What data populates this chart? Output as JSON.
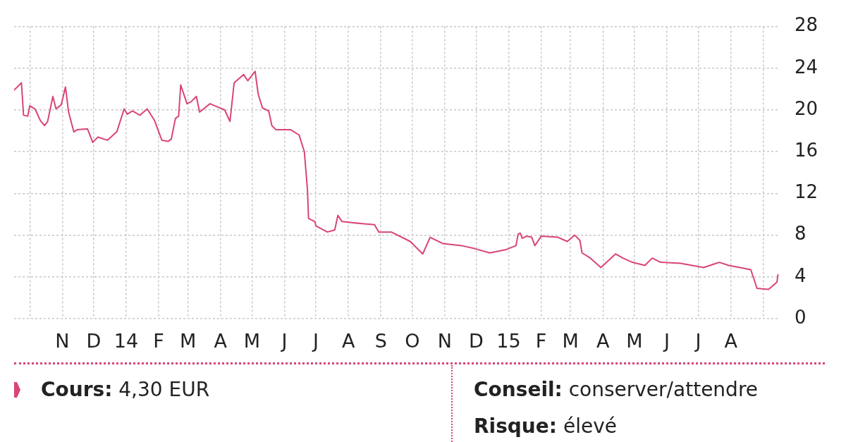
{
  "chart_data": {
    "type": "line",
    "x": [
      "2013-09-16",
      "2013-09-23",
      "2013-09-25",
      "2013-09-29",
      "2013-10-01",
      "2013-10-06",
      "2013-10-11",
      "2013-10-15",
      "2013-10-18",
      "2013-10-23",
      "2013-10-26",
      "2013-10-31",
      "2013-11-04",
      "2013-11-07",
      "2013-11-12",
      "2013-11-15",
      "2013-11-25",
      "2013-11-30",
      "2013-12-05",
      "2013-12-14",
      "2013-12-23",
      "2013-12-30",
      "2014-01-02",
      "2014-01-07",
      "2014-01-14",
      "2014-01-21",
      "2014-01-28",
      "2014-02-04",
      "2014-02-10",
      "2014-02-13",
      "2014-02-17",
      "2014-02-20",
      "2014-02-22",
      "2014-02-28",
      "2014-03-04",
      "2014-03-09",
      "2014-03-12",
      "2014-03-22",
      "2014-03-29",
      "2014-04-05",
      "2014-04-10",
      "2014-04-14",
      "2014-04-23",
      "2014-04-27",
      "2014-05-04",
      "2014-05-07",
      "2014-05-11",
      "2014-05-17",
      "2014-05-20",
      "2014-05-24",
      "2014-06-07",
      "2014-06-15",
      "2014-06-20",
      "2014-06-23",
      "2014-06-24",
      "2014-06-30",
      "2014-07-01",
      "2014-07-12",
      "2014-07-19",
      "2014-07-22",
      "2014-07-26",
      "2014-08-04",
      "2014-08-26",
      "2014-08-30",
      "2014-09-11",
      "2014-09-29",
      "2014-10-11",
      "2014-10-18",
      "2014-10-30",
      "2014-11-17",
      "2014-11-30",
      "2014-12-14",
      "2014-12-29",
      "2015-01-08",
      "2015-01-10",
      "2015-01-12",
      "2015-01-14",
      "2015-01-18",
      "2015-01-23",
      "2015-01-26",
      "2015-02-01",
      "2015-02-17",
      "2015-02-19",
      "2015-02-26",
      "2015-03-05",
      "2015-03-10",
      "2015-03-12",
      "2015-03-20",
      "2015-03-30",
      "2015-04-13",
      "2015-04-20",
      "2015-04-29",
      "2015-05-11",
      "2015-05-18",
      "2015-05-26",
      "2015-06-14",
      "2015-07-06",
      "2015-07-21",
      "2015-07-30",
      "2015-08-20",
      "2015-08-23",
      "2015-08-26",
      "2015-09-06",
      "2015-09-14",
      "2015-09-15"
    ],
    "series": [
      {
        "color": "#d9447a",
        "values": [
          21.9,
          22.6,
          19.5,
          19.4,
          20.4,
          20.1,
          19.0,
          18.5,
          18.9,
          21.3,
          20.1,
          20.5,
          22.2,
          19.8,
          17.9,
          18.1,
          18.2,
          16.9,
          17.4,
          17.1,
          17.9,
          20.1,
          19.6,
          19.9,
          19.5,
          20.1,
          19.0,
          17.1,
          17.0,
          17.2,
          19.2,
          19.4,
          22.4,
          20.6,
          20.8,
          21.3,
          19.8,
          20.6,
          20.3,
          20.0,
          18.9,
          22.6,
          23.4,
          22.8,
          23.7,
          21.5,
          20.2,
          19.9,
          18.5,
          18.1,
          18.1,
          17.6,
          16.0,
          12.3,
          9.6,
          9.3,
          8.9,
          8.3,
          8.5,
          9.9,
          9.3,
          9.2,
          9.0,
          8.3,
          8.3,
          7.4,
          6.2,
          7.8,
          7.2,
          7.0,
          6.7,
          6.3,
          6.6,
          7.0,
          8.1,
          8.2,
          7.7,
          7.9,
          7.8,
          7.0,
          7.9,
          7.8,
          7.7,
          7.4,
          8.0,
          7.5,
          6.3,
          5.8,
          4.9,
          6.2,
          5.8,
          5.4,
          5.1,
          5.8,
          5.4,
          5.3,
          4.9,
          5.4,
          5.1,
          4.7,
          3.8,
          2.9,
          2.8,
          3.5,
          4.2
        ]
      }
    ],
    "xlim": [
      "2013-09-16",
      "2015-09-16"
    ],
    "xticks": [
      {
        "value": "2013-10-01",
        "label": null
      },
      {
        "value": "2013-11-01",
        "label": "N"
      },
      {
        "value": "2013-12-01",
        "label": "D"
      },
      {
        "value": "2014-01-01",
        "label": "14"
      },
      {
        "value": "2014-02-01",
        "label": "F"
      },
      {
        "value": "2014-03-01",
        "label": "M"
      },
      {
        "value": "2014-04-01",
        "label": "A"
      },
      {
        "value": "2014-05-01",
        "label": "M"
      },
      {
        "value": "2014-06-01",
        "label": "J"
      },
      {
        "value": "2014-07-01",
        "label": "J"
      },
      {
        "value": "2014-08-01",
        "label": "A"
      },
      {
        "value": "2014-09-01",
        "label": "S"
      },
      {
        "value": "2014-10-01",
        "label": "O"
      },
      {
        "value": "2014-11-01",
        "label": "N"
      },
      {
        "value": "2014-12-01",
        "label": "D"
      },
      {
        "value": "2015-01-01",
        "label": "15"
      },
      {
        "value": "2015-02-01",
        "label": "F"
      },
      {
        "value": "2015-03-01",
        "label": "M"
      },
      {
        "value": "2015-04-01",
        "label": "A"
      },
      {
        "value": "2015-05-01",
        "label": "M"
      },
      {
        "value": "2015-06-01",
        "label": "J"
      },
      {
        "value": "2015-07-01",
        "label": "J"
      },
      {
        "value": "2015-08-01",
        "label": "A"
      },
      {
        "value": "2015-09-01",
        "label": null
      }
    ],
    "ylim": [
      0,
      28
    ],
    "yticks": [
      0,
      4,
      8,
      12,
      16,
      20,
      24,
      28
    ],
    "grid": true,
    "annotations": [
      "Cours: 4,30 EUR",
      "Conseil: conserver/attendre",
      "Risque: élevé"
    ]
  }
}
